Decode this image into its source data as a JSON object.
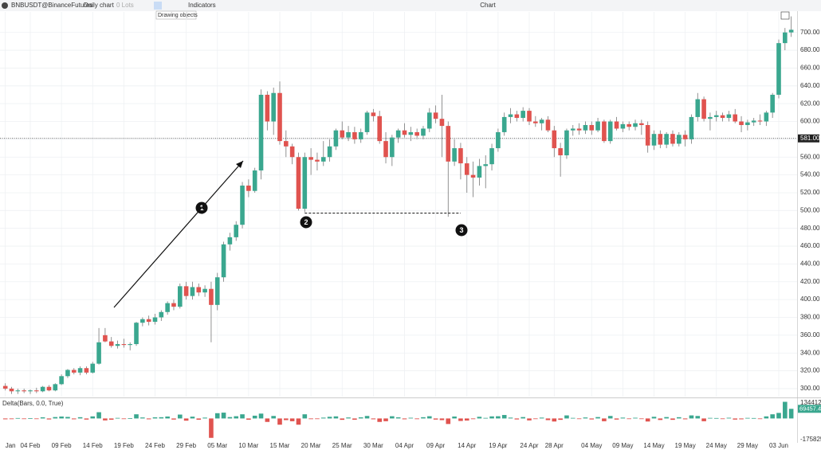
{
  "toolbar": {
    "symbol": "BNBUSDT@BinanceFutures",
    "timeframe": "Daily chart",
    "lots": "0 Lots",
    "indicators": "Indicators",
    "window_title": "Chart",
    "tooltip": "Drawing objects"
  },
  "chart_data": {
    "type": "candlestick",
    "up_color": "#3aa78f",
    "down_color": "#e0534f",
    "grid": true,
    "ylim": [
      291,
      723
    ],
    "yticks": [
      {
        "value": 300,
        "label": "300.00"
      },
      {
        "value": 320,
        "label": "320.00"
      },
      {
        "value": 340,
        "label": "340.00"
      },
      {
        "value": 360,
        "label": "360.00"
      },
      {
        "value": 380,
        "label": "380.00"
      },
      {
        "value": 400,
        "label": "400.00"
      },
      {
        "value": 420,
        "label": "420.00"
      },
      {
        "value": 440,
        "label": "440.00"
      },
      {
        "value": 460,
        "label": "460.00"
      },
      {
        "value": 480,
        "label": "480.00"
      },
      {
        "value": 500,
        "label": "500.00"
      },
      {
        "value": 520,
        "label": "520.00"
      },
      {
        "value": 540,
        "label": "540.00"
      },
      {
        "value": 560,
        "label": "560.00"
      },
      {
        "value": 580,
        "label": "580.00"
      },
      {
        "value": 600,
        "label": "600.00"
      },
      {
        "value": 620,
        "label": "620.00"
      },
      {
        "value": 640,
        "label": "640.00"
      },
      {
        "value": 660,
        "label": "660.00"
      },
      {
        "value": 680,
        "label": "680.00"
      },
      {
        "value": 700,
        "label": "700.00"
      }
    ],
    "price_line": {
      "value": 581,
      "label": "581.00"
    },
    "support_line": 497,
    "annotations": [
      "1",
      "2",
      "3"
    ],
    "categories": [
      "Jan",
      null,
      null,
      null,
      "04 Feb",
      null,
      null,
      null,
      null,
      "09 Feb",
      null,
      null,
      null,
      null,
      "14 Feb",
      null,
      null,
      null,
      null,
      "19 Feb",
      null,
      null,
      null,
      null,
      "24 Feb",
      null,
      null,
      null,
      null,
      "29 Feb",
      null,
      null,
      null,
      null,
      "05 Mar",
      null,
      null,
      null,
      null,
      "10 Mar",
      null,
      null,
      null,
      null,
      "15 Mar",
      null,
      null,
      null,
      null,
      "20 Mar",
      null,
      null,
      null,
      null,
      "25 Mar",
      null,
      null,
      null,
      null,
      "30 Mar",
      null,
      null,
      null,
      null,
      "04 Apr",
      null,
      null,
      null,
      null,
      "09 Apr",
      null,
      null,
      null,
      null,
      "14 Apr",
      null,
      null,
      null,
      null,
      "19 Apr",
      null,
      null,
      null,
      null,
      "24 Apr",
      null,
      null,
      null,
      "28 Apr",
      null,
      null,
      null,
      null,
      null,
      "04 May",
      null,
      null,
      null,
      null,
      "09 May",
      null,
      null,
      null,
      null,
      "14 May",
      null,
      null,
      null,
      null,
      "19 May",
      null,
      null,
      null,
      null,
      "24 May",
      null,
      null,
      null,
      null,
      "29 May",
      null,
      null,
      null,
      null,
      "03 Jun",
      null,
      null
    ],
    "candles": [
      [
        303,
        306,
        298,
        300
      ],
      [
        300,
        302,
        294,
        297
      ],
      [
        297,
        300,
        294,
        298
      ],
      [
        298,
        300,
        295,
        297
      ],
      [
        297,
        299,
        294,
        298
      ],
      [
        298,
        301,
        295,
        297
      ],
      [
        297,
        303,
        296,
        302
      ],
      [
        302,
        304,
        297,
        298
      ],
      [
        298,
        306,
        297,
        305
      ],
      [
        305,
        316,
        304,
        314
      ],
      [
        314,
        322,
        312,
        321
      ],
      [
        321,
        323,
        316,
        318
      ],
      [
        318,
        325,
        315,
        323
      ],
      [
        323,
        325,
        316,
        318
      ],
      [
        318,
        330,
        317,
        328
      ],
      [
        328,
        368,
        327,
        352
      ],
      [
        360,
        368,
        352,
        353
      ],
      [
        353,
        358,
        346,
        348
      ],
      [
        348,
        354,
        345,
        350
      ],
      [
        350,
        356,
        346,
        349
      ],
      [
        349,
        352,
        343,
        350
      ],
      [
        350,
        375,
        348,
        374
      ],
      [
        374,
        380,
        370,
        378
      ],
      [
        378,
        382,
        371,
        375
      ],
      [
        375,
        384,
        372,
        380
      ],
      [
        380,
        388,
        376,
        386
      ],
      [
        386,
        398,
        383,
        396
      ],
      [
        396,
        400,
        388,
        392
      ],
      [
        392,
        418,
        390,
        415
      ],
      [
        415,
        420,
        400,
        404
      ],
      [
        404,
        420,
        400,
        414
      ],
      [
        414,
        418,
        404,
        408
      ],
      [
        408,
        416,
        403,
        412
      ],
      [
        412,
        420,
        352,
        394
      ],
      [
        394,
        430,
        388,
        425
      ],
      [
        425,
        465,
        420,
        462
      ],
      [
        462,
        475,
        455,
        470
      ],
      [
        470,
        488,
        466,
        484
      ],
      [
        484,
        532,
        480,
        528
      ],
      [
        528,
        535,
        515,
        522
      ],
      [
        522,
        548,
        520,
        545
      ],
      [
        545,
        636,
        535,
        630
      ],
      [
        630,
        634,
        590,
        600
      ],
      [
        600,
        638,
        585,
        632
      ],
      [
        632,
        645,
        574,
        578
      ],
      [
        578,
        590,
        560,
        572
      ],
      [
        572,
        575,
        552,
        560
      ],
      [
        560,
        565,
        500,
        502
      ],
      [
        502,
        565,
        498,
        560
      ],
      [
        560,
        570,
        540,
        557
      ],
      [
        557,
        565,
        545,
        555
      ],
      [
        555,
        578,
        550,
        560
      ],
      [
        560,
        580,
        555,
        572
      ],
      [
        572,
        592,
        568,
        590
      ],
      [
        590,
        600,
        580,
        582
      ],
      [
        582,
        595,
        578,
        588
      ],
      [
        588,
        594,
        575,
        580
      ],
      [
        580,
        592,
        576,
        588
      ],
      [
        588,
        612,
        585,
        610
      ],
      [
        610,
        614,
        600,
        606
      ],
      [
        606,
        612,
        575,
        578
      ],
      [
        578,
        588,
        553,
        560
      ],
      [
        560,
        585,
        550,
        582
      ],
      [
        582,
        592,
        576,
        590
      ],
      [
        590,
        598,
        582,
        585
      ],
      [
        585,
        594,
        578,
        588
      ],
      [
        588,
        592,
        580,
        584
      ],
      [
        584,
        595,
        580,
        592
      ],
      [
        592,
        615,
        588,
        610
      ],
      [
        610,
        618,
        598,
        603
      ],
      [
        603,
        630,
        560,
        595
      ],
      [
        595,
        600,
        493,
        555
      ],
      [
        555,
        580,
        550,
        570
      ],
      [
        570,
        576,
        535,
        553
      ],
      [
        553,
        560,
        520,
        540
      ],
      [
        540,
        555,
        515,
        537
      ],
      [
        537,
        558,
        528,
        550
      ],
      [
        550,
        562,
        525,
        552
      ],
      [
        552,
        575,
        545,
        570
      ],
      [
        570,
        592,
        566,
        588
      ],
      [
        588,
        610,
        584,
        605
      ],
      [
        605,
        615,
        598,
        608
      ],
      [
        608,
        612,
        600,
        604
      ],
      [
        604,
        616,
        600,
        612
      ],
      [
        612,
        615,
        596,
        600
      ],
      [
        600,
        606,
        594,
        598
      ],
      [
        598,
        604,
        590,
        602
      ],
      [
        602,
        606,
        588,
        590
      ],
      [
        590,
        595,
        560,
        570
      ],
      [
        570,
        576,
        538,
        562
      ],
      [
        562,
        592,
        558,
        590
      ],
      [
        590,
        596,
        584,
        592
      ],
      [
        592,
        598,
        585,
        590
      ],
      [
        590,
        600,
        586,
        596
      ],
      [
        596,
        600,
        585,
        590
      ],
      [
        590,
        604,
        588,
        600
      ],
      [
        600,
        602,
        576,
        578
      ],
      [
        578,
        602,
        575,
        600
      ],
      [
        600,
        605,
        590,
        592
      ],
      [
        592,
        600,
        588,
        597
      ],
      [
        597,
        600,
        590,
        594
      ],
      [
        594,
        602,
        590,
        598
      ],
      [
        598,
        602,
        585,
        596
      ],
      [
        596,
        600,
        565,
        573
      ],
      [
        573,
        590,
        568,
        586
      ],
      [
        586,
        590,
        570,
        574
      ],
      [
        574,
        588,
        570,
        586
      ],
      [
        586,
        590,
        572,
        575
      ],
      [
        575,
        588,
        572,
        585
      ],
      [
        585,
        590,
        572,
        580
      ],
      [
        580,
        608,
        575,
        605
      ],
      [
        605,
        632,
        600,
        625
      ],
      [
        625,
        628,
        600,
        603
      ],
      [
        603,
        610,
        590,
        605
      ],
      [
        605,
        612,
        600,
        607
      ],
      [
        607,
        610,
        600,
        604
      ],
      [
        604,
        612,
        600,
        608
      ],
      [
        608,
        614,
        598,
        600
      ],
      [
        600,
        606,
        588,
        596
      ],
      [
        596,
        602,
        590,
        599
      ],
      [
        599,
        604,
        595,
        601
      ],
      [
        601,
        608,
        596,
        600
      ],
      [
        600,
        612,
        595,
        610
      ],
      [
        610,
        632,
        604,
        630
      ],
      [
        630,
        692,
        626,
        688
      ],
      [
        688,
        705,
        680,
        700
      ],
      [
        700,
        718,
        695,
        703
      ]
    ],
    "delta": {
      "title": "Delta(Bars, 0.0, True)",
      "ylim": [
        -175825,
        134412.3
      ],
      "yticks": [
        134412.3,
        -175825
      ],
      "values": [
        -6000,
        -5000,
        3000,
        -2000,
        2000,
        -3000,
        8000,
        -7000,
        10000,
        14000,
        11000,
        -6000,
        9000,
        -8000,
        15000,
        45000,
        -14000,
        -9000,
        4000,
        -3000,
        2000,
        30000,
        7000,
        -6000,
        8000,
        9000,
        14000,
        -8000,
        28000,
        -16000,
        13000,
        -9000,
        6000,
        -140000,
        38000,
        42000,
        10000,
        16000,
        30000,
        -9000,
        20000,
        35000,
        -25000,
        18000,
        -45000,
        -12000,
        -20000,
        -45000,
        30000,
        -5000,
        -4000,
        6000,
        12000,
        15000,
        -10000,
        7000,
        -9000,
        8000,
        18000,
        -6000,
        -25000,
        -20000,
        16000,
        8000,
        -6000,
        5000,
        -5000,
        9000,
        16000,
        -8000,
        -12000,
        -40000,
        14000,
        -18000,
        -15000,
        -5000,
        12000,
        4000,
        15000,
        16000,
        25000,
        6000,
        -7000,
        10000,
        -14000,
        -4000,
        6000,
        -12000,
        -22000,
        -10000,
        22000,
        4000,
        -4000,
        7000,
        -7000,
        10000,
        -20000,
        18000,
        -8000,
        6000,
        -4000,
        5000,
        -4000,
        -22000,
        12000,
        -11000,
        10000,
        -10000,
        9000,
        -6000,
        22000,
        18000,
        -20000,
        4000,
        3000,
        -4000,
        5000,
        -8000,
        -6000,
        4000,
        3000,
        -2000,
        15000,
        30000,
        40000,
        120000,
        69457.4
      ]
    }
  }
}
